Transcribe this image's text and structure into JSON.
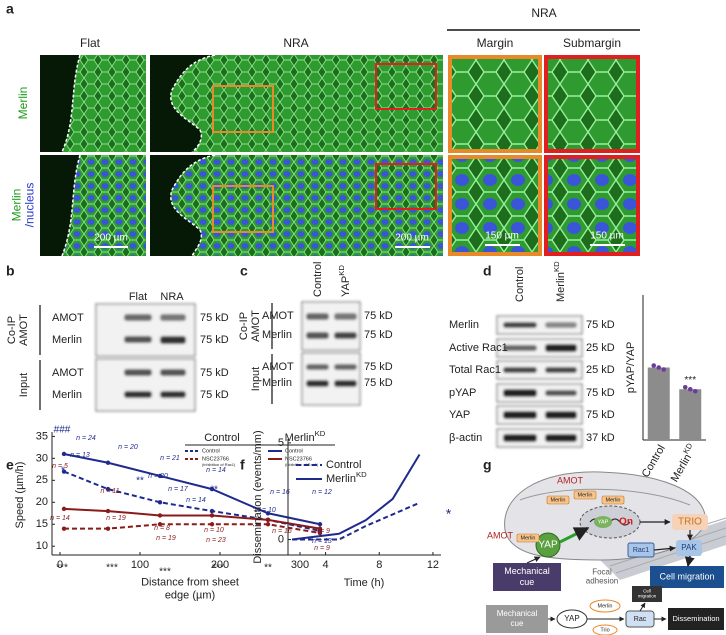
{
  "panels": {
    "a": {
      "label": "a",
      "flat": "Flat",
      "nra": "NRA",
      "group": "NRA",
      "margin": "Margin",
      "submargin": "Submargin",
      "row1": "Merlin",
      "row2": [
        "Merlin",
        "/nucleus"
      ],
      "scale_bars": [
        "200 µm",
        "200 µm",
        "150 µm",
        "150 µm"
      ]
    },
    "b": {
      "label": "b",
      "lanes": [
        "Flat",
        "NRA"
      ],
      "groups": [
        [
          "Co-IP",
          "AMOT"
        ],
        "Input"
      ],
      "rows": [
        "AMOT",
        "Merlin",
        "AMOT",
        "Merlin"
      ],
      "kd": [
        "75 kD",
        "75 kD",
        "75 kD",
        "75 kD"
      ]
    },
    "c": {
      "label": "c",
      "lanes": [
        "Control",
        {
          "text": "YAP",
          "sup": "KD"
        }
      ],
      "groups": [
        [
          "Co-IP",
          "AMOT"
        ],
        "Input"
      ],
      "rows": [
        "AMOT",
        "Merlin",
        "AMOT",
        "Merlin"
      ],
      "kd": [
        "75 kD",
        "75 kD",
        "75 kD",
        "75 kD"
      ]
    },
    "d": {
      "label": "d",
      "lanes": [
        "Control",
        {
          "text": "Merlin",
          "sup": "KD"
        }
      ],
      "rows": [
        "Merlin",
        "Active Rac1",
        "Total Rac1",
        "pYAP",
        "YAP",
        "β-actin"
      ],
      "kd": [
        "75 kD",
        "25 kD",
        "25 kD",
        "75 kD",
        "75 kD",
        "37 kD"
      ]
    },
    "e": {
      "label": "e"
    },
    "f": {
      "label": "f"
    },
    "g": {
      "label": "g",
      "amot": [
        "AMOT",
        "AMOT"
      ],
      "merlin": [
        "Merlin",
        "Merlin",
        "Merlin",
        "Merlin"
      ],
      "yap": [
        "YAP",
        "YAP"
      ],
      "on": "On",
      "trio": "TRIO",
      "rac1": "Rac1",
      "pak": "PAK",
      "mech": [
        "Mechanical",
        "cue"
      ],
      "focal": [
        "Focal",
        "adhesion"
      ],
      "migration": "Cell migration",
      "flow": {
        "mech": [
          "Mechanical",
          "cue"
        ],
        "yap": "YAP",
        "merlin": "Merlin",
        "trio": "Trio",
        "rac": "Rac",
        "migration": [
          "Cell",
          "migration"
        ],
        "out": "Dissemination"
      }
    }
  },
  "chart_data": [
    {
      "type": "bar",
      "ylabel": "pYAP/YAP",
      "categories": [
        "Control",
        {
          "text": "Merlin",
          "sup": "KD"
        }
      ],
      "values": [
        1.0,
        0.7
      ],
      "ylim": [
        0,
        2
      ],
      "color": "#8c8c8c",
      "annotation": "***"
    },
    {
      "type": "line",
      "ylabel": "Speed (µm/h)",
      "xlabel": [
        "Distance from sheet",
        "edge (µm)"
      ],
      "xlim": [
        -10,
        350
      ],
      "ylim": [
        8,
        36
      ],
      "xticks": [
        0,
        100,
        200,
        300
      ],
      "yticks": [
        10,
        15,
        20,
        25,
        30,
        35
      ],
      "legend_groups": [
        "Control",
        {
          "text": "Merlin",
          "sup": "KD"
        }
      ],
      "x": [
        5,
        60,
        125,
        190,
        260,
        325
      ],
      "series": [
        {
          "name": "Control",
          "group": 0,
          "color": "#1f2a8f",
          "dash": true,
          "values": [
            27,
            23,
            20,
            18,
            16,
            13.5
          ]
        },
        {
          "name": "NSC23766",
          "note": "(inhibition of Rac1)",
          "group": 0,
          "color": "#8b1a1a",
          "dash": true,
          "values": [
            14,
            14,
            15,
            15,
            15,
            13
          ]
        },
        {
          "name": "Control",
          "group": 1,
          "color": "#1f2a8f",
          "dash": false,
          "values": [
            31,
            29,
            26,
            23,
            17.5,
            15
          ]
        },
        {
          "name": "NSC23766",
          "note": "(inhibition of Rac1)",
          "group": 1,
          "color": "#8b1a1a",
          "dash": false,
          "values": [
            18.5,
            18,
            17,
            17,
            16,
            14
          ]
        }
      ],
      "annotations": [
        {
          "text": "###",
          "color": "#1f2a8f"
        },
        {
          "text": "n = 24",
          "color": "#1f2a8f"
        },
        {
          "text": "n = 13",
          "color": "#1f2a8f"
        },
        {
          "text": "*",
          "color": "#1f2a8f"
        },
        {
          "text": "n = 20",
          "color": "#1f2a8f"
        },
        {
          "text": "n = 21",
          "color": "#1f2a8f"
        },
        {
          "text": "**",
          "color": "#1f2a8f"
        },
        {
          "text": "n = 20",
          "color": "#1f2a8f"
        },
        {
          "text": "n = 17",
          "color": "#1f2a8f"
        },
        {
          "text": "n = 14",
          "color": "#1f2a8f"
        },
        {
          "text": "n = 14",
          "color": "#1f2a8f"
        },
        {
          "text": "**",
          "color": "#1f2a8f"
        },
        {
          "text": "n = 16",
          "color": "#1f2a8f"
        },
        {
          "text": "n = 12",
          "color": "#1f2a8f"
        },
        {
          "text": "n = 10",
          "color": "#1f2a8f"
        },
        {
          "text": "n = 13",
          "color": "#1f2a8f"
        },
        {
          "text": "n = 5",
          "color": "#8b1a1a"
        },
        {
          "text": "n = 11",
          "color": "#8b1a1a"
        },
        {
          "text": "n = 14",
          "color": "#8b1a1a"
        },
        {
          "text": "n = 19",
          "color": "#8b1a1a"
        },
        {
          "text": "n = 8",
          "color": "#8b1a1a"
        },
        {
          "text": "n = 19",
          "color": "#8b1a1a"
        },
        {
          "text": "n = 10",
          "color": "#8b1a1a"
        },
        {
          "text": "n = 23",
          "color": "#8b1a1a"
        },
        {
          "text": "n = 16",
          "color": "#8b1a1a"
        },
        {
          "text": "n = 9",
          "color": "#8b1a1a"
        },
        {
          "text": "n = 9",
          "color": "#8b1a1a"
        },
        {
          "text": "***",
          "color": "#222222"
        },
        {
          "text": "***",
          "color": "#222222"
        },
        {
          "text": "***",
          "color": "#222222"
        },
        {
          "text": "***",
          "color": "#222222"
        },
        {
          "text": "**",
          "color": "#222222"
        }
      ]
    },
    {
      "type": "line",
      "ylabel": "Dissemination (events/mm)",
      "xlabel": "Time (h)",
      "xlim": [
        1.2,
        12.6
      ],
      "ylim": [
        -0.8,
        5.2
      ],
      "xticks": [
        4,
        8,
        12
      ],
      "yticks": [
        0,
        5
      ],
      "x": [
        1.5,
        5,
        7,
        9,
        11
      ],
      "series": [
        {
          "name": "Control",
          "color": "#1f2a8f",
          "dash": true,
          "values": [
            0,
            0,
            0.7,
            1.3,
            1.9
          ]
        },
        {
          "name": {
            "text": "Merlin",
            "sup": "KD"
          },
          "color": "#1f2a8f",
          "dash": false,
          "values": [
            0,
            0.3,
            1.0,
            2.1,
            4.4
          ]
        }
      ],
      "annotation": "*"
    }
  ]
}
